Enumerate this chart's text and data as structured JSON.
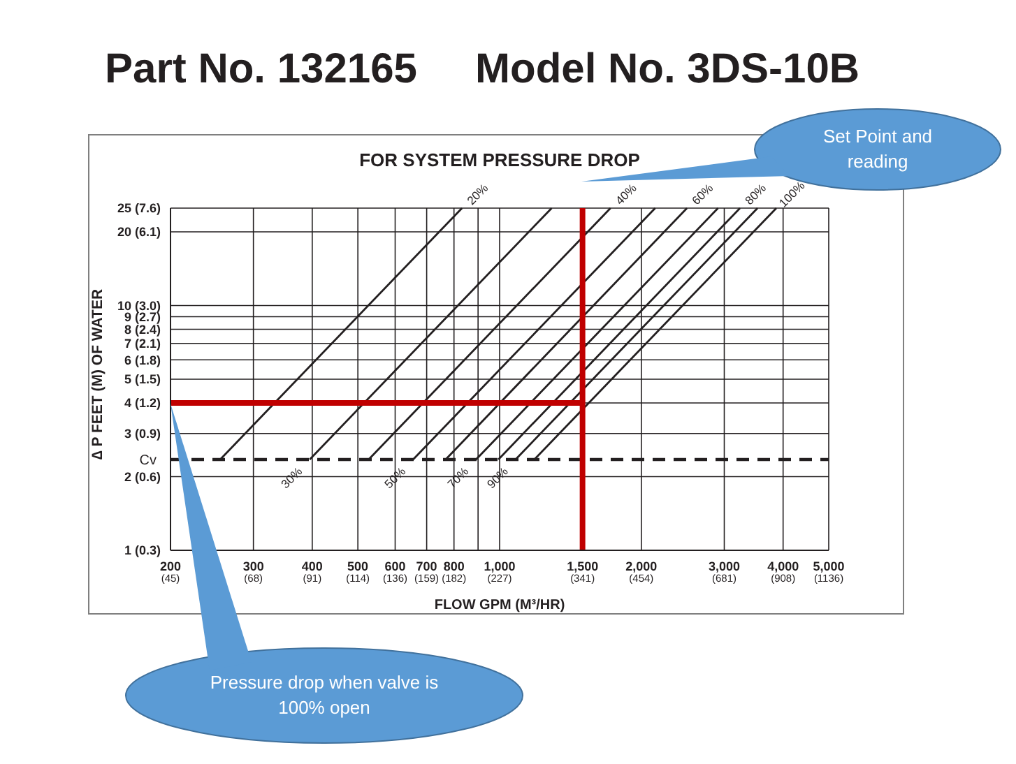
{
  "chart_data": {
    "type": "line",
    "title": "FOR SYSTEM PRESSURE DROP",
    "xlabel": "FLOW GPM (M³/HR)",
    "ylabel": "∆ P FEET (M) OF WATER",
    "log": "xy",
    "xlim": [
      200,
      5000
    ],
    "xticks": [
      200,
      300,
      400,
      500,
      600,
      700,
      800,
      {
        "value": 900,
        "label": null
      },
      {
        "value": 1000,
        "label": "1,000"
      },
      {
        "value": 1500,
        "label": "1,500"
      },
      {
        "value": 2000,
        "label": "2,000"
      },
      {
        "value": 3000,
        "label": "3,000"
      },
      {
        "value": 4000,
        "label": "4,000"
      },
      {
        "value": 5000,
        "label": "5,000"
      }
    ],
    "ylim": [
      1,
      25
    ],
    "yticks": [
      1,
      2,
      3,
      4,
      5,
      6,
      7,
      8,
      9,
      10,
      20,
      25
    ],
    "grid": true,
    "marker": "none",
    "series": [
      {
        "name": "20%",
        "color": "#231f20",
        "x": [
          255,
          832
        ],
        "values": [
          2.35,
          25
        ]
      },
      {
        "name": "30%",
        "color": "#231f20",
        "x": [
          395,
          1290
        ],
        "values": [
          2.35,
          25
        ]
      },
      {
        "name": "40%",
        "color": "#231f20",
        "x": [
          527,
          1720
        ],
        "values": [
          2.35,
          25
        ]
      },
      {
        "name": "50%",
        "color": "#231f20",
        "x": [
          655,
          2140
        ],
        "values": [
          2.35,
          25
        ]
      },
      {
        "name": "60%",
        "color": "#231f20",
        "x": [
          768,
          2500
        ],
        "values": [
          2.35,
          25
        ]
      },
      {
        "name": "70%",
        "color": "#231f20",
        "x": [
          891,
          2910
        ],
        "values": [
          2.35,
          25
        ]
      },
      {
        "name": "80%",
        "color": "#231f20",
        "x": [
          994,
          3240
        ],
        "values": [
          2.35,
          25
        ]
      },
      {
        "name": "90%",
        "color": "#231f20",
        "x": [
          1081,
          3530
        ],
        "values": [
          2.35,
          25
        ]
      },
      {
        "name": "100%",
        "color": "#231f20",
        "x": [
          1185,
          3870
        ],
        "values": [
          2.35,
          25
        ]
      }
    ],
    "ref_lines": [
      {
        "axis": "y",
        "value": 2.35,
        "label": "Cv",
        "line_style": "dashed",
        "color": "#231f20"
      },
      {
        "axis": "x",
        "value": 1500,
        "color": "#c00000"
      },
      {
        "axis": "y",
        "value": 4,
        "color": "#c00000"
      }
    ],
    "annotations": [
      "Part No. 132165",
      "Model No. 3DS-10B",
      "Set Point and reading",
      "Pressure drop when valve is 100% open",
      "(45)",
      "(68)",
      "(91)",
      "(114)",
      "(136)",
      "(159)",
      "(182)",
      "(227)",
      "(341)",
      "(454)",
      "(681)",
      "(908)",
      "(1136)",
      "(0.3)",
      "(0.6)",
      "(0.9)",
      "(1.2)",
      "(1.5)",
      "(1.8)",
      "(2.1)",
      "(2.4)",
      "(2.7)",
      "(3.0)",
      "(6.1)",
      "(7.6)"
    ]
  }
}
